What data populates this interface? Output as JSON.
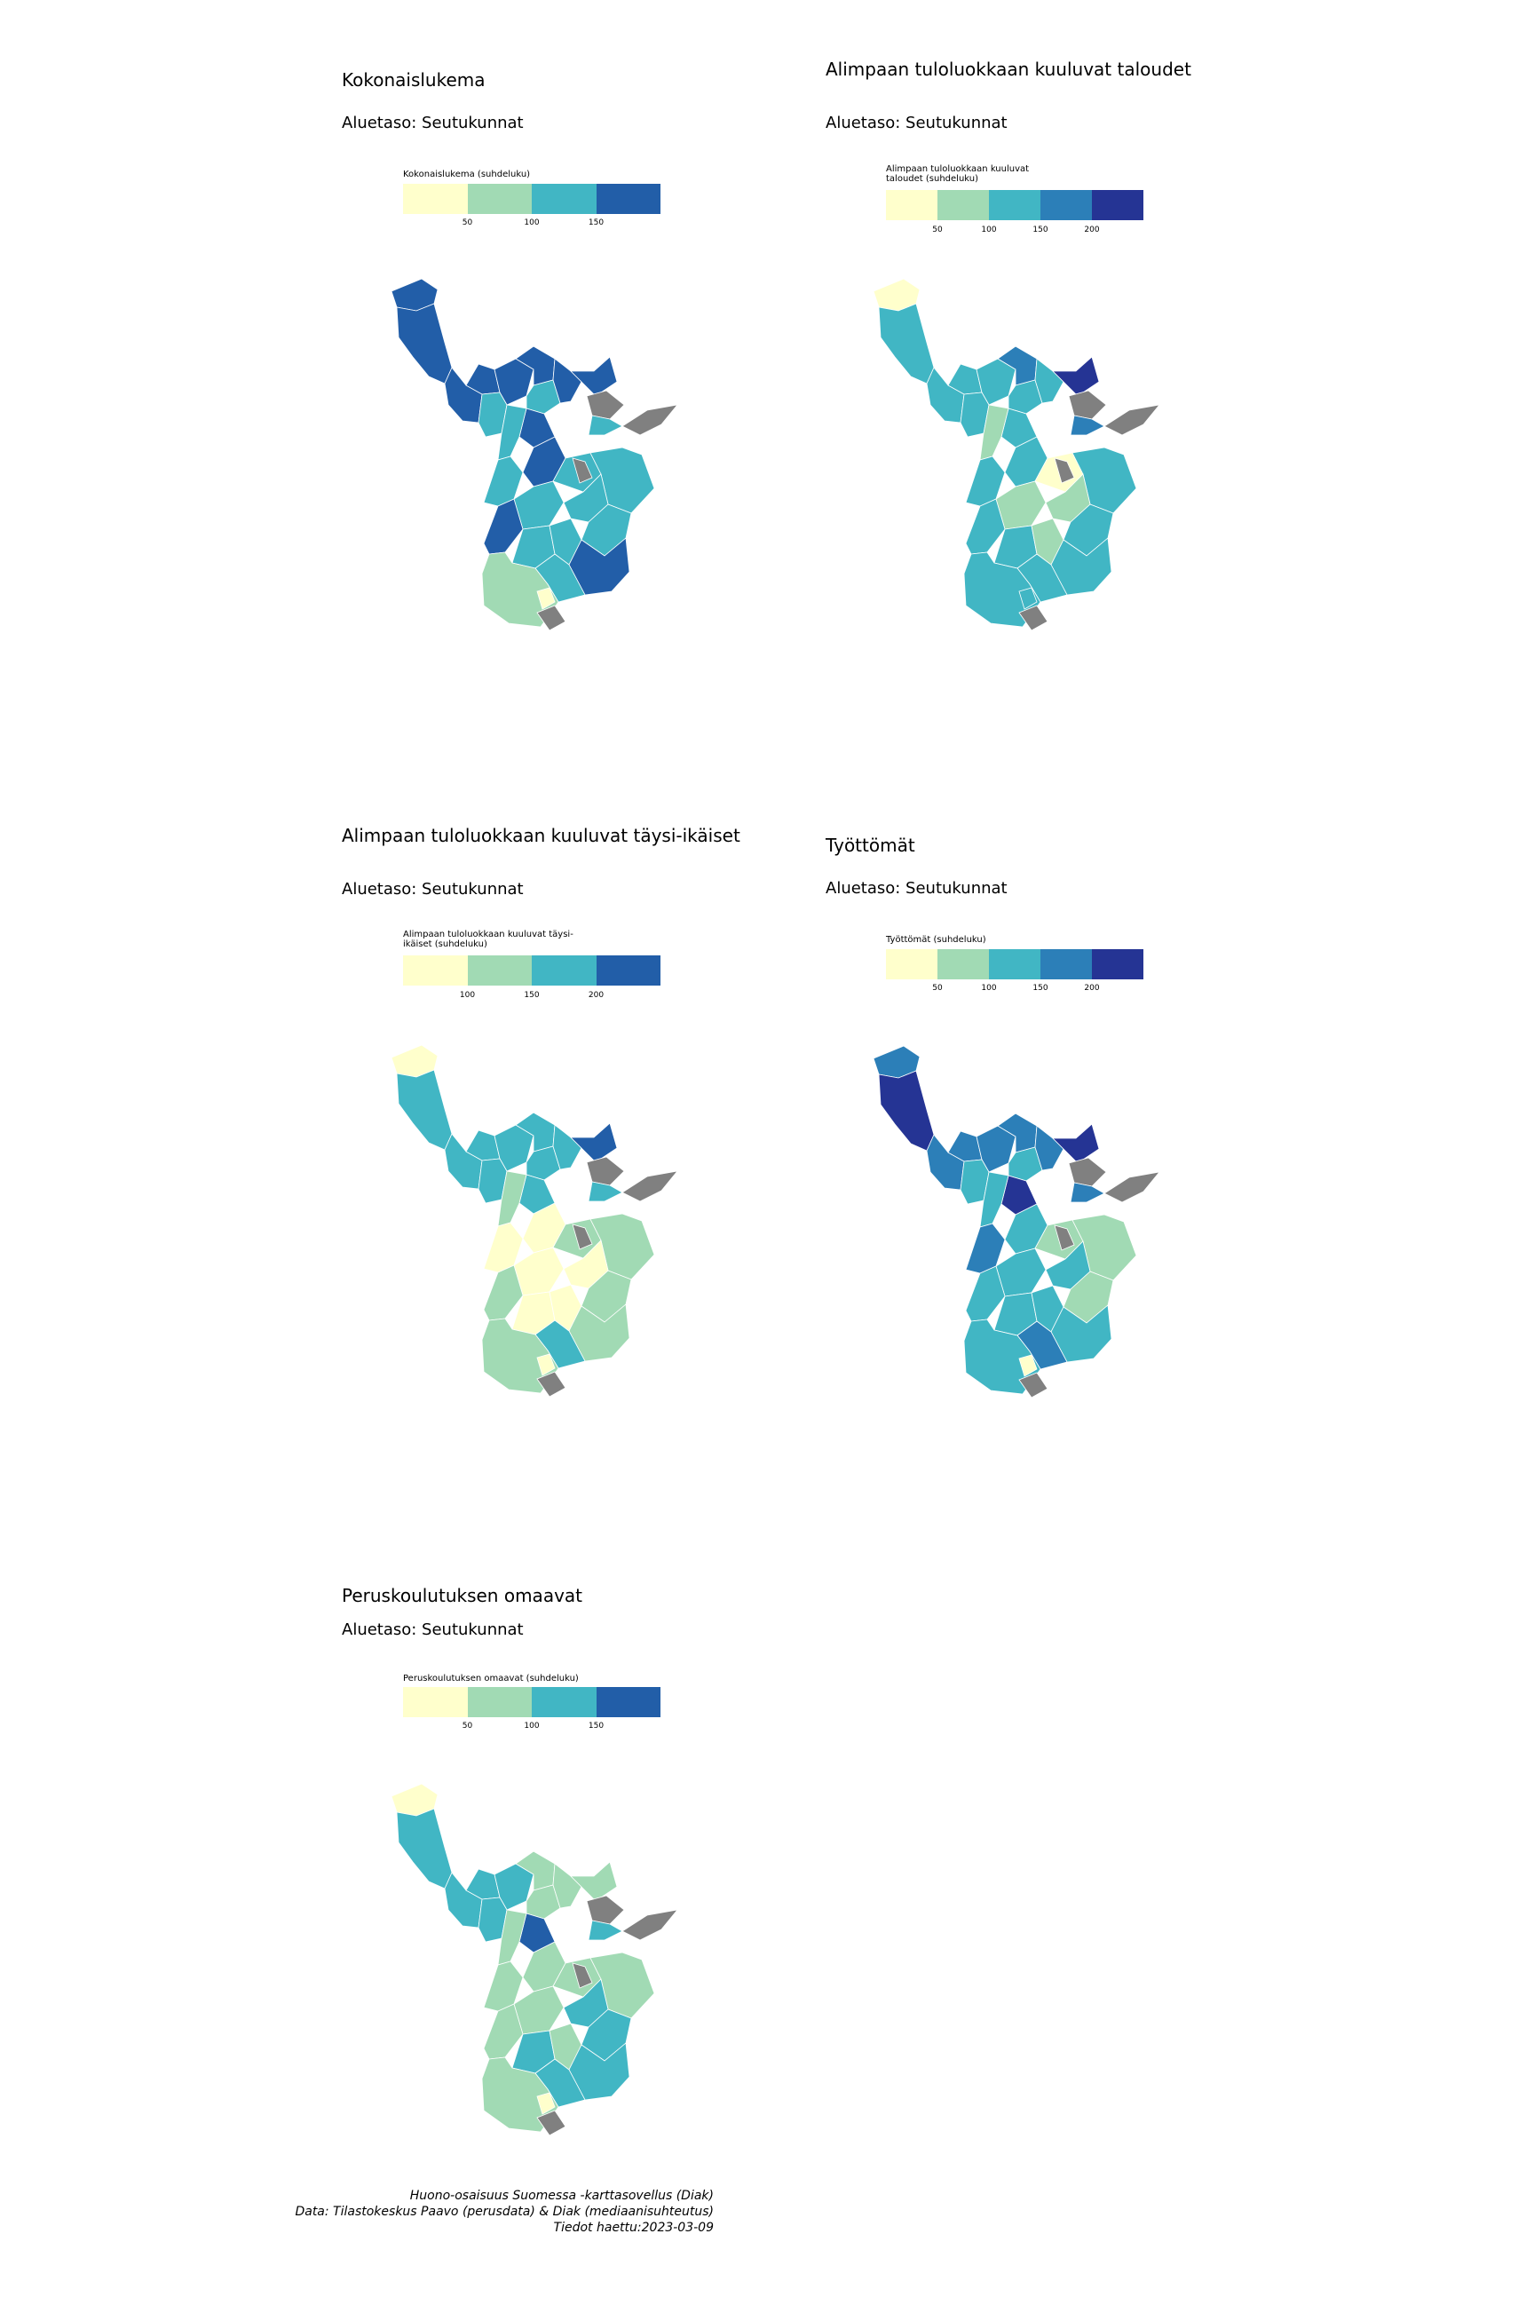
{
  "map_panels": [
    {
      "title": "Kokonaislukema",
      "subtitle": "Aluetaso: Seutukunnat",
      "legend_title": "Kokonaislukema (suhdeluku)",
      "legend_colors": [
        "#ffffcc",
        "#a1dab4",
        "#41b6c4",
        "#225ea8"
      ],
      "legend_ticks": [
        "50",
        "100",
        "150"
      ],
      "region_classes": [
        3,
        3,
        3,
        3,
        3,
        2,
        3,
        2,
        3,
        3,
        3,
        2,
        2,
        3,
        2,
        2,
        2,
        2,
        3,
        2,
        2,
        2,
        3,
        2,
        1,
        -1,
        -1,
        -1,
        -1,
        0,
        2
      ]
    },
    {
      "title": "Alimpaan tuloluokkaan kuuluvat taloudet",
      "subtitle": "Aluetaso: Seutukunnat",
      "legend_title": "Alimpaan tuloluokkaan kuuluvat taloudet (suhdeluku)",
      "legend_colors": [
        "#ffffcc",
        "#a1dab4",
        "#41b6c4",
        "#2c7fb8",
        "#253494"
      ],
      "legend_ticks": [
        "50",
        "100",
        "150",
        "200"
      ],
      "region_classes": [
        0,
        2,
        2,
        2,
        2,
        2,
        3,
        2,
        2,
        4,
        2,
        1,
        2,
        2,
        0,
        2,
        1,
        1,
        2,
        2,
        1,
        2,
        2,
        2,
        2,
        -1,
        -1,
        -1,
        -1,
        2,
        3
      ]
    },
    {
      "title": "Alimpaan tuloluokkaan kuuluvat täysi-ikäiset",
      "subtitle": "Aluetaso: Seutukunnat",
      "legend_title": "Alimpaan tuloluokkaan kuuluvat täysi-ikäiset (suhdeluku)",
      "legend_colors": [
        "#ffffcc",
        "#a1dab4",
        "#41b6c4",
        "#225ea8"
      ],
      "legend_ticks": [
        "100",
        "150",
        "200"
      ],
      "region_classes": [
        0,
        2,
        2,
        2,
        2,
        2,
        2,
        2,
        2,
        3,
        2,
        1,
        0,
        0,
        1,
        1,
        0,
        0,
        1,
        0,
        0,
        1,
        1,
        2,
        1,
        -1,
        -1,
        -1,
        -1,
        0,
        2
      ]
    },
    {
      "title": "Työttömät",
      "subtitle": "Aluetaso: Seutukunnat",
      "legend_title": "Työttömät (suhdeluku)",
      "legend_colors": [
        "#ffffcc",
        "#a1dab4",
        "#41b6c4",
        "#2c7fb8",
        "#253494"
      ],
      "legend_ticks": [
        "50",
        "100",
        "150",
        "200"
      ],
      "region_classes": [
        3,
        4,
        3,
        3,
        3,
        2,
        3,
        2,
        3,
        4,
        4,
        2,
        3,
        2,
        1,
        1,
        2,
        2,
        2,
        2,
        2,
        1,
        2,
        3,
        2,
        -1,
        -1,
        -1,
        -1,
        0,
        3
      ]
    },
    {
      "title": "Peruskoulutuksen omaavat",
      "subtitle": "Aluetaso: Seutukunnat",
      "legend_title": "Peruskoulutuksen omaavat (suhdeluku)",
      "legend_colors": [
        "#ffffcc",
        "#a1dab4",
        "#41b6c4",
        "#225ea8"
      ],
      "legend_ticks": [
        "50",
        "100",
        "150"
      ],
      "region_classes": [
        0,
        2,
        2,
        2,
        2,
        2,
        1,
        1,
        1,
        1,
        3,
        1,
        1,
        1,
        1,
        1,
        1,
        2,
        1,
        2,
        1,
        2,
        2,
        2,
        1,
        -1,
        -1,
        -1,
        -1,
        0,
        2
      ]
    }
  ],
  "no_data_color": "#808080",
  "caption": {
    "line1": "Huono-osaisuus Suomessa -karttasovellus (Diak)",
    "line2": "Data: Tilastokeskus Paavo (perusdata) & Diak (mediaanisuhteutus)",
    "line3": "Tiedot haettu:2023-03-09"
  }
}
